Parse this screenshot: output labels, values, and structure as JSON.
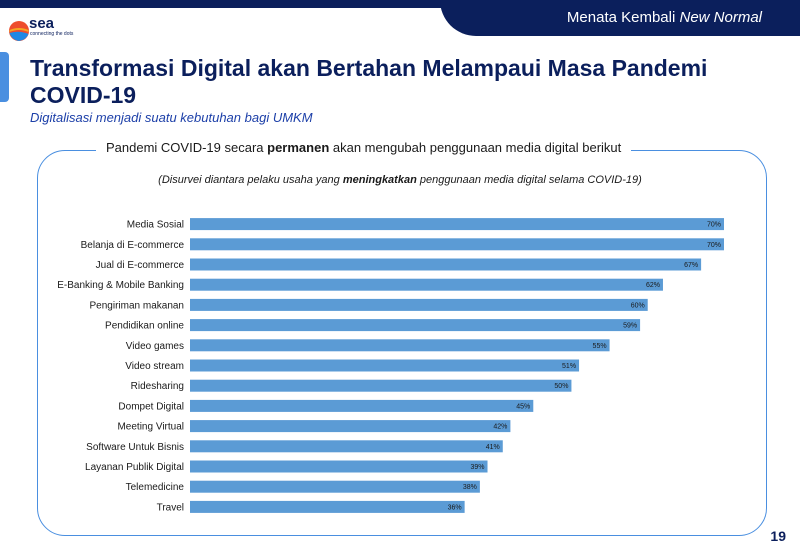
{
  "header": {
    "tab_plain": "Menata Kembali ",
    "tab_italic": "New Normal",
    "logo_text": "sea",
    "logo_tagline": "connecting the dots"
  },
  "title": "Transformasi Digital akan Bertahan Melampaui Masa Pandemi COVID-19",
  "subtitle": "Digitalisasi menjadi suatu kebutuhan bagi UMKM",
  "panel": {
    "heading_pre": "Pandemi COVID-19 secara ",
    "heading_bold": "permanen",
    "heading_post": " akan mengubah penggunaan media digital berikut",
    "note_pre": "(Disurvei diantara pelaku usaha yang ",
    "note_bold": "meningkatkan",
    "note_post": " penggunaan media digital selama COVID-19)"
  },
  "page_number": "19",
  "colors": {
    "navy": "#0b1f5c",
    "bar": "#5b9bd5",
    "accent": "#4a8fe0"
  },
  "chart_data": {
    "type": "bar",
    "orientation": "horizontal",
    "categories": [
      "Media Sosial",
      "Belanja di E-commerce",
      "Jual di E-commerce",
      "E-Banking & Mobile Banking",
      "Pengiriman makanan",
      "Pendidikan online",
      "Video games",
      "Video stream",
      "Ridesharing",
      "Dompet Digital",
      "Meeting Virtual",
      "Software Untuk Bisnis",
      "Layanan Publik Digital",
      "Telemedicine",
      "Travel"
    ],
    "values": [
      70,
      70,
      67,
      62,
      60,
      59,
      55,
      51,
      50,
      45,
      42,
      41,
      39,
      38,
      36
    ],
    "value_labels": [
      "70%",
      "70%",
      "67%",
      "62%",
      "60%",
      "59%",
      "55%",
      "51%",
      "50%",
      "45%",
      "42%",
      "41%",
      "39%",
      "38%",
      "36%"
    ],
    "unit": "%",
    "xlim": [
      0,
      70
    ],
    "grid": false,
    "legend": "none"
  }
}
